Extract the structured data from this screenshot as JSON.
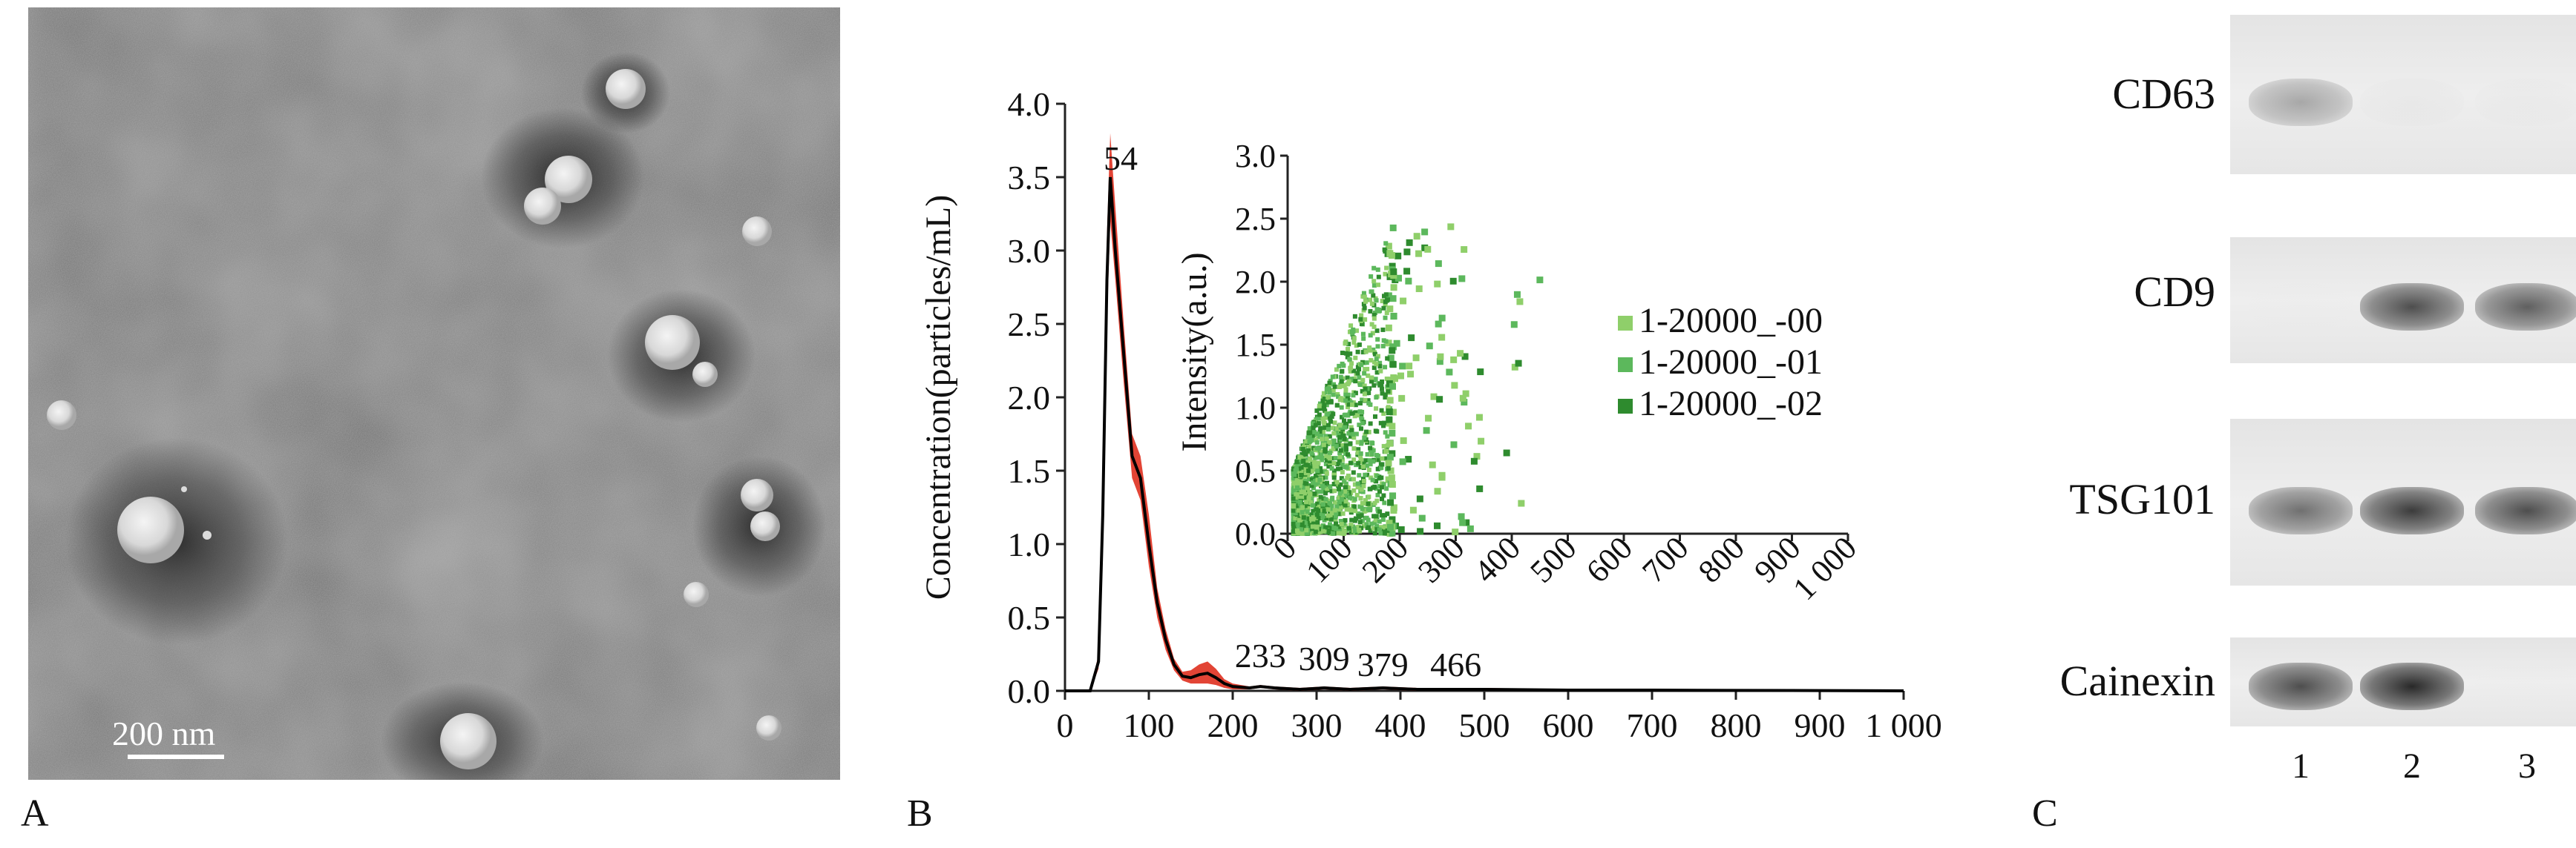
{
  "panels": {
    "A": {
      "letter": "A",
      "scale_bar_label": "200 nm",
      "vesicle_colors": {
        "background": "#6e6e6e",
        "particle": "#e6e6e6",
        "halo": "#2a2a2a"
      }
    },
    "B": {
      "letter": "B"
    },
    "C": {
      "letter": "C",
      "bands": [
        {
          "label": "CD63",
          "lane_intensity": [
            0.55,
            0.12,
            0.1
          ]
        },
        {
          "label": "CD9",
          "lane_intensity": [
            0.03,
            0.85,
            0.8
          ]
        },
        {
          "label": "TSG101",
          "lane_intensity": [
            0.75,
            0.9,
            0.85
          ]
        },
        {
          "label": "Cainexin",
          "lane_intensity": [
            0.85,
            0.95,
            0.02
          ]
        }
      ],
      "lanes": [
        "1",
        "2",
        "3"
      ]
    }
  },
  "chart_data": [
    {
      "type": "line",
      "title": "",
      "xlabel": "",
      "ylabel": "Concentration(particles/mL)",
      "xlim": [
        0,
        1000
      ],
      "ylim": [
        0,
        4.0
      ],
      "x_ticks": [
        "0",
        "100",
        "200",
        "300",
        "400",
        "500",
        "600",
        "700",
        "800",
        "900",
        "1 000"
      ],
      "y_ticks": [
        "0.0",
        "0.5",
        "1.0",
        "1.5",
        "2.0",
        "2.5",
        "3.0",
        "3.5",
        "4.0"
      ],
      "grid": false,
      "colors": {
        "mean": "#000000",
        "error_band": "#e03a2a"
      },
      "x": [
        0,
        30,
        40,
        45,
        50,
        54,
        60,
        70,
        80,
        90,
        100,
        110,
        120,
        130,
        140,
        150,
        160,
        170,
        180,
        190,
        200,
        220,
        233,
        250,
        280,
        309,
        340,
        379,
        420,
        466,
        500,
        600,
        700,
        800,
        900,
        1000
      ],
      "series": [
        {
          "values": [
            0,
            0,
            0.2,
            1.2,
            2.8,
            3.5,
            3.0,
            2.3,
            1.6,
            1.45,
            1.0,
            0.6,
            0.35,
            0.18,
            0.1,
            0.09,
            0.11,
            0.12,
            0.09,
            0.05,
            0.03,
            0.02,
            0.03,
            0.02,
            0.01,
            0.02,
            0.01,
            0.02,
            0.01,
            0.01,
            0.01,
            0.005,
            0.005,
            0.003,
            0.002,
            0
          ]
        }
      ],
      "error_band": {
        "upper": [
          0,
          0,
          0.25,
          1.4,
          3.1,
          3.8,
          3.3,
          2.5,
          1.75,
          1.6,
          1.2,
          0.7,
          0.42,
          0.22,
          0.13,
          0.14,
          0.18,
          0.2,
          0.15,
          0.08,
          0.05,
          0.03,
          0.04,
          0.03,
          0.02,
          0.03,
          0.02,
          0.03,
          0.02,
          0.02,
          0.02,
          0.01,
          0.01,
          0.005,
          0.003,
          0
        ],
        "lower": [
          0,
          0,
          0.15,
          1.0,
          2.5,
          3.2,
          2.8,
          2.1,
          1.45,
          1.3,
          0.85,
          0.5,
          0.28,
          0.14,
          0.07,
          0.05,
          0.05,
          0.05,
          0.04,
          0.02,
          0.01,
          0.01,
          0.02,
          0.01,
          0.0,
          0.01,
          0.0,
          0.01,
          0.0,
          0.0,
          0.0,
          0.0,
          0.0,
          0.0,
          0.0,
          0
        ]
      },
      "annotations": [
        {
          "text": "54",
          "x": 54,
          "y": 3.55
        },
        {
          "text": "233",
          "x": 233,
          "y": 0.12
        },
        {
          "text": "309",
          "x": 309,
          "y": 0.1
        },
        {
          "text": "379",
          "x": 379,
          "y": 0.06
        },
        {
          "text": "466",
          "x": 466,
          "y": 0.06
        }
      ]
    },
    {
      "type": "scatter",
      "title": "",
      "xlabel": "",
      "ylabel": "Intensity(a.u.)",
      "xlim": [
        0,
        1000
      ],
      "ylim": [
        0,
        3.0
      ],
      "x_ticks": [
        "0",
        "100",
        "200",
        "300",
        "400",
        "500",
        "600",
        "700",
        "800",
        "900",
        "1 000"
      ],
      "y_ticks": [
        "0.0",
        "0.5",
        "1.0",
        "1.5",
        "2.0",
        "2.5",
        "3.0"
      ],
      "grid": false,
      "legend_position": "right",
      "series": [
        {
          "name": "1-20000_-00",
          "color": "#8fcf6a"
        },
        {
          "name": "1-20000_-01",
          "color": "#5cb85c"
        },
        {
          "name": "1-20000_-02",
          "color": "#2e8b2e"
        }
      ]
    }
  ]
}
